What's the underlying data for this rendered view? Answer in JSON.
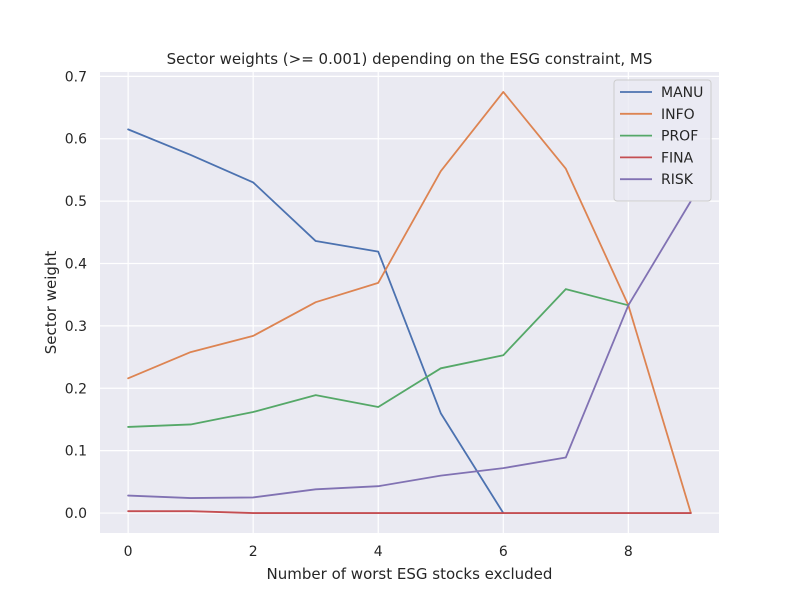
{
  "chart_data": {
    "type": "line",
    "title": "Sector weights (>= 0.001) depending on the ESG constraint, MS",
    "xlabel": "Number of worst ESG stocks excluded",
    "ylabel": "Sector weight",
    "xlim": [
      -0.45,
      9.45
    ],
    "ylim": [
      -0.032,
      0.707
    ],
    "x_ticks": [
      0,
      2,
      4,
      6,
      8
    ],
    "y_ticks": [
      0.0,
      0.1,
      0.2,
      0.3,
      0.4,
      0.5,
      0.6,
      0.7
    ],
    "x_tick_labels": [
      "0",
      "2",
      "4",
      "6",
      "8"
    ],
    "y_tick_labels": [
      "0.0",
      "0.1",
      "0.2",
      "0.3",
      "0.4",
      "0.5",
      "0.6",
      "0.7"
    ],
    "grid": true,
    "legend_position": "top-right",
    "background": "#eaeaf2",
    "grid_color": "#ffffff",
    "series": [
      {
        "name": "MANU",
        "color": "#4c72b0",
        "x": [
          0,
          1,
          2,
          3,
          4,
          5,
          6
        ],
        "values": [
          0.615,
          0.574,
          0.53,
          0.436,
          0.419,
          0.16,
          0.0
        ]
      },
      {
        "name": "INFO",
        "color": "#dd8452",
        "x": [
          0,
          1,
          2,
          3,
          4,
          5,
          6,
          7,
          8,
          9
        ],
        "values": [
          0.216,
          0.258,
          0.284,
          0.338,
          0.369,
          0.548,
          0.675,
          0.552,
          0.333,
          0.0
        ]
      },
      {
        "name": "PROF",
        "color": "#55a868",
        "x": [
          0,
          1,
          2,
          3,
          4,
          5,
          6,
          7,
          8
        ],
        "values": [
          0.138,
          0.142,
          0.162,
          0.189,
          0.17,
          0.232,
          0.253,
          0.359,
          0.333
        ]
      },
      {
        "name": "FINA",
        "color": "#c44e52",
        "x": [
          0,
          1,
          2,
          3,
          4,
          5,
          6,
          7,
          8,
          9
        ],
        "values": [
          0.003,
          0.003,
          0.0,
          0.0,
          0.0,
          0.0,
          0.0,
          0.0,
          0.0,
          0.0
        ]
      },
      {
        "name": "RISK",
        "color": "#8172b3",
        "x": [
          0,
          1,
          2,
          3,
          4,
          5,
          6,
          7,
          8,
          9
        ],
        "values": [
          0.028,
          0.024,
          0.025,
          0.038,
          0.043,
          0.06,
          0.072,
          0.089,
          0.333,
          0.5
        ]
      }
    ]
  }
}
